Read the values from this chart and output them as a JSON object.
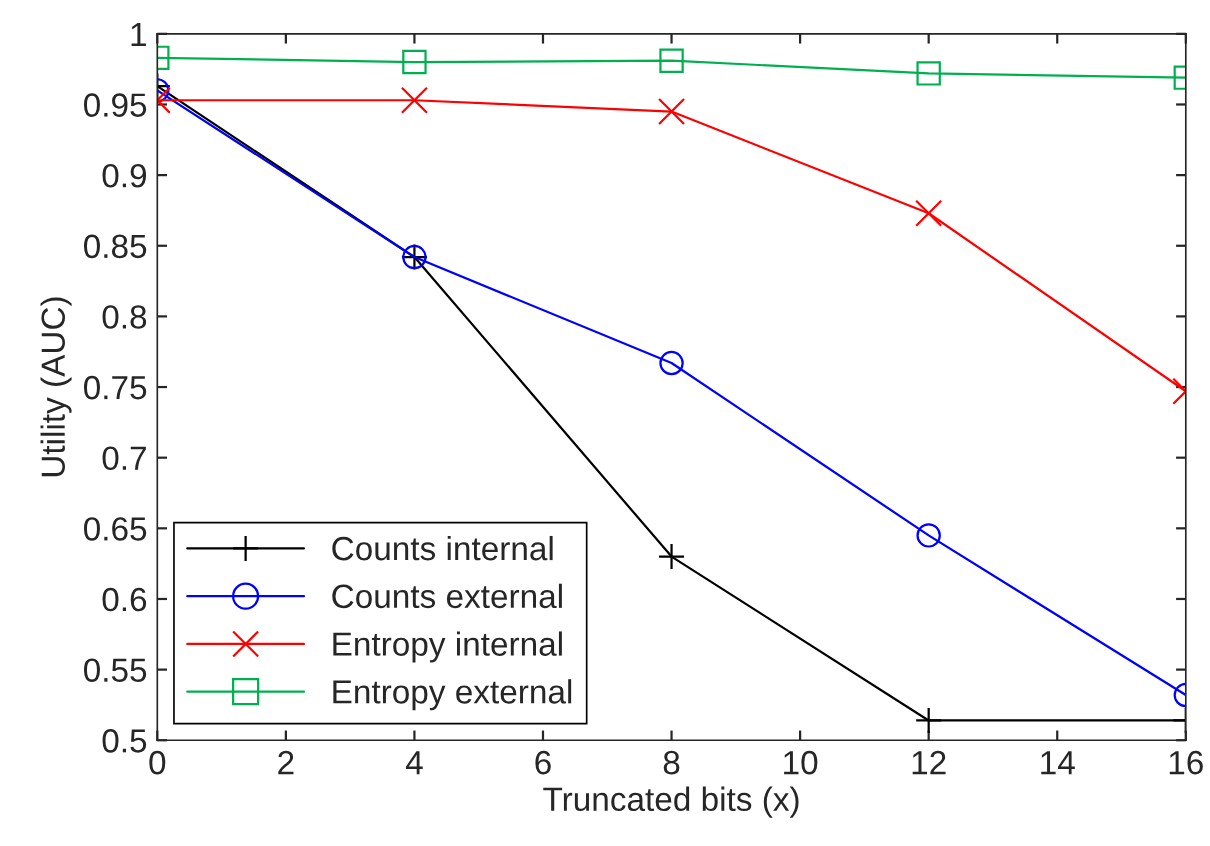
{
  "chart_data": {
    "type": "line",
    "xlabel": "Truncated bits (x)",
    "ylabel": "Utility (AUC)",
    "x": [
      0,
      4,
      8,
      12,
      16
    ],
    "xlim": [
      0,
      16
    ],
    "xticks": [
      0,
      2,
      4,
      6,
      8,
      10,
      12,
      14,
      16
    ],
    "ylim": [
      0.5,
      1
    ],
    "yticks": [
      0.5,
      0.55,
      0.6,
      0.65,
      0.7,
      0.75,
      0.8,
      0.85,
      0.9,
      0.95,
      1
    ],
    "grid": false,
    "legend": "bottom left",
    "line_style": "solid",
    "series": [
      {
        "name": "Counts internal",
        "color": "#000000",
        "marker": "plus",
        "values": [
          0.963,
          0.842,
          0.63,
          0.514,
          0.514
        ]
      },
      {
        "name": "Counts external",
        "color": "#0000ff",
        "marker": "circle",
        "values": [
          0.96,
          0.842,
          0.767,
          0.645,
          0.532
        ]
      },
      {
        "name": "Entropy internal",
        "color": "#ff0000",
        "marker": "cross",
        "values": [
          0.953,
          0.953,
          0.945,
          0.873,
          0.747
        ]
      },
      {
        "name": "Entropy external",
        "color": "#00b050",
        "marker": "square",
        "values": [
          0.983,
          0.98,
          0.981,
          0.972,
          0.969
        ]
      }
    ]
  }
}
